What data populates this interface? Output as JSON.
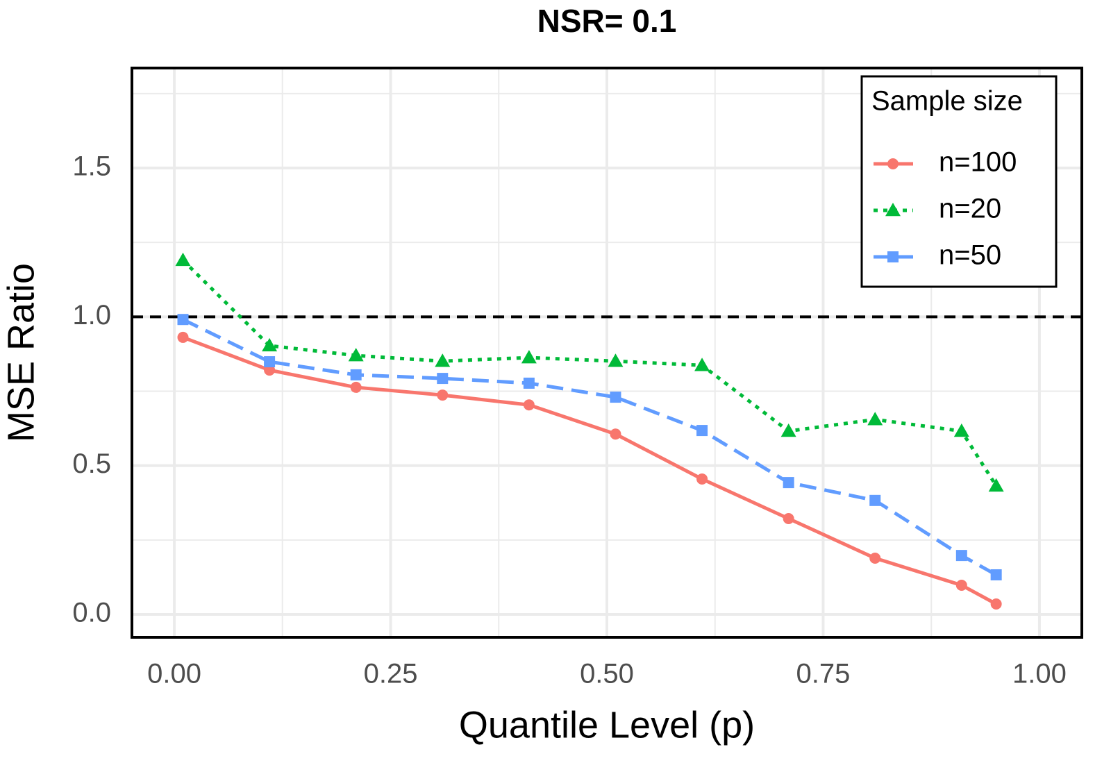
{
  "chart_data": {
    "type": "line",
    "title": "NSR= 0.1",
    "x_label": "Quantile Level (p)",
    "y_label": "MSE Ratio",
    "x": [
      0.01,
      0.11,
      0.21,
      0.31,
      0.41,
      0.51,
      0.61,
      0.71,
      0.81,
      0.91,
      0.95
    ],
    "series": [
      {
        "name": "n=100",
        "color": "#F8766D",
        "dash": "solid",
        "marker": "circle",
        "values": [
          0.931,
          0.821,
          0.763,
          0.737,
          0.704,
          0.606,
          0.455,
          0.322,
          0.189,
          0.098,
          0.035
        ]
      },
      {
        "name": "n=20",
        "color": "#00BA38",
        "dash": "dotted",
        "marker": "triangle",
        "values": [
          1.19,
          0.903,
          0.87,
          0.851,
          0.863,
          0.851,
          0.837,
          0.616,
          0.655,
          0.616,
          0.432
        ]
      },
      {
        "name": "n=50",
        "color": "#619CFF",
        "dash": "dashed",
        "marker": "square",
        "values": [
          0.991,
          0.849,
          0.805,
          0.793,
          0.777,
          0.73,
          0.618,
          0.443,
          0.383,
          0.198,
          0.133
        ]
      }
    ],
    "reference_line": 1,
    "xlim": [
      -0.049,
      1.049
    ],
    "ylim": [
      -0.077,
      1.836
    ],
    "xticks": [
      {
        "value": 0,
        "label": "0.00"
      },
      {
        "value": 0.25,
        "label": "0.25"
      },
      {
        "value": 0.5,
        "label": "0.50"
      },
      {
        "value": 0.75,
        "label": "0.75"
      },
      {
        "value": 1,
        "label": "1.00"
      }
    ],
    "yticks": [
      {
        "value": 0,
        "label": "0.0"
      },
      {
        "value": 0.5,
        "label": "0.5"
      },
      {
        "value": 1,
        "label": "1.0"
      },
      {
        "value": 1.5,
        "label": "1.5"
      }
    ],
    "grid": true,
    "legend_title": "Sample size",
    "legend_position": "top-right"
  }
}
